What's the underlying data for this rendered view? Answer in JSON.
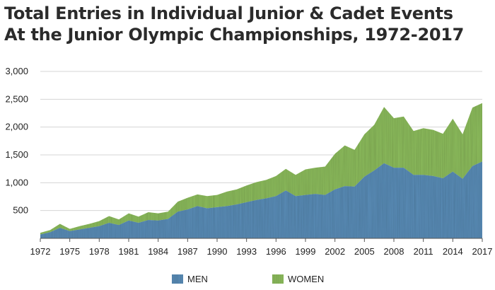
{
  "chart_data": {
    "type": "area",
    "stacked": true,
    "title_line1": "Total Entries in Individual Junior & Cadet Events",
    "title_line2": "At the Junior Olympic Championships, 1972-2017",
    "xlabel": "",
    "ylabel": "",
    "x": [
      1972,
      1973,
      1974,
      1975,
      1976,
      1977,
      1978,
      1979,
      1980,
      1981,
      1982,
      1983,
      1984,
      1985,
      1986,
      1987,
      1988,
      1989,
      1990,
      1991,
      1992,
      1993,
      1994,
      1995,
      1996,
      1997,
      1998,
      1999,
      2000,
      2001,
      2002,
      2003,
      2004,
      2005,
      2006,
      2007,
      2008,
      2009,
      2010,
      2011,
      2012,
      2013,
      2014,
      2015,
      2016,
      2017
    ],
    "x_tick_labels": [
      "1972",
      "1975",
      "1978",
      "1981",
      "1984",
      "1987",
      "1990",
      "1993",
      "1996",
      "1999",
      "2002",
      "2005",
      "2008",
      "2011",
      "2014",
      "2017"
    ],
    "y_tick_labels": [
      "500",
      "1,000",
      "1,500",
      "2,000",
      "2,500",
      "3,000"
    ],
    "y_ticks": [
      500,
      1000,
      1500,
      2000,
      2500,
      3000
    ],
    "ylim": [
      0,
      3000
    ],
    "series": [
      {
        "name": "MEN",
        "color": "#5b8fba",
        "values": [
          70,
          110,
          190,
          130,
          160,
          190,
          220,
          280,
          240,
          320,
          280,
          330,
          320,
          350,
          480,
          520,
          580,
          540,
          560,
          580,
          610,
          650,
          690,
          720,
          760,
          860,
          760,
          780,
          800,
          780,
          880,
          940,
          930,
          1110,
          1220,
          1350,
          1270,
          1270,
          1140,
          1140,
          1120,
          1080,
          1200,
          1070,
          1300,
          1380
        ]
      },
      {
        "name": "WOMEN",
        "color": "#8fbf5f",
        "values": [
          30,
          40,
          70,
          40,
          60,
          70,
          90,
          120,
          100,
          130,
          110,
          140,
          130,
          130,
          180,
          210,
          210,
          220,
          220,
          260,
          270,
          300,
          320,
          330,
          360,
          390,
          380,
          460,
          470,
          510,
          640,
          730,
          660,
          760,
          820,
          1010,
          890,
          920,
          790,
          840,
          830,
          800,
          950,
          800,
          1050,
          1050
        ]
      }
    ],
    "legend": "bottom"
  }
}
